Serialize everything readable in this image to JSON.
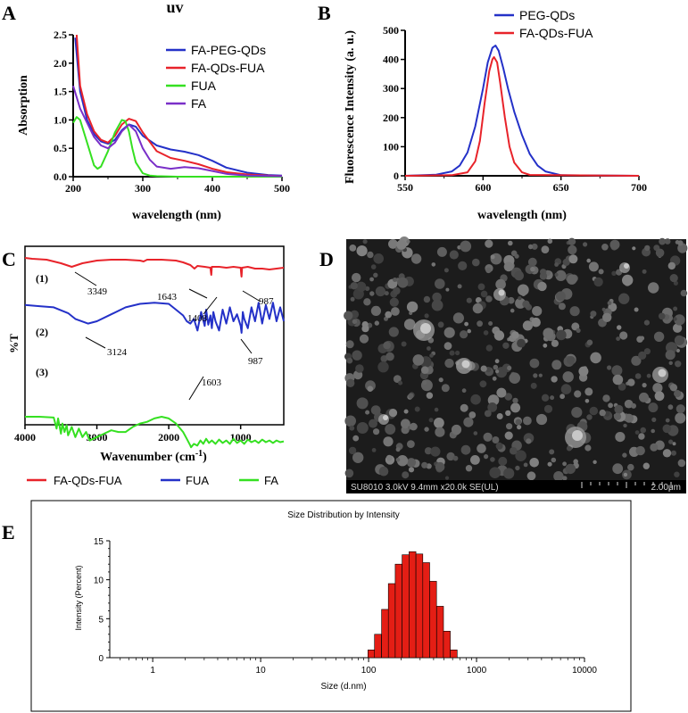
{
  "panels": {
    "a": {
      "letter": "A",
      "title": "uv",
      "xlabel": "wavelength (nm)",
      "ylabel": "Absorption"
    },
    "b": {
      "letter": "B",
      "xlabel": "wavelength (nm)",
      "ylabel": "Fluorescence Intensity (a. u.)"
    },
    "c": {
      "letter": "C",
      "ylabel": "%T",
      "xlabel_main": "Wavenumber (cm",
      "xlabel_sup": "-1",
      "xlabel_end": ")",
      "curve_labels": [
        "(1)",
        "(2)",
        "(3)"
      ],
      "annotations": [
        "3349",
        "1643",
        "1408",
        "987",
        "3124",
        "987",
        "1603"
      ]
    },
    "d": {
      "letter": "D",
      "info": "SU8010 3.0kV 9.4mm x20.0k SE(UL)",
      "scale": "2.00μm"
    },
    "e": {
      "letter": "E"
    }
  },
  "colors": {
    "red": "#e8232a",
    "blue": "#2431c8",
    "green": "#35e021",
    "purple": "#7a2fc8",
    "bar": "#e41e15"
  },
  "chart_data": [
    {
      "type": "line",
      "title": "uv",
      "xlabel": "wavelength (nm)",
      "ylabel": "Absorption",
      "xlim": [
        200,
        500
      ],
      "ylim": [
        0,
        2.5
      ],
      "xticks": [
        "200",
        "300",
        "400",
        "500"
      ],
      "yticks": [
        "0.0",
        "0.5",
        "1.0",
        "1.5",
        "2.0",
        "2.5"
      ],
      "legend": [
        "FA-PEG-QDs",
        "FA-QDs-FUA",
        "FUA",
        "FA"
      ],
      "series": [
        {
          "name": "FA-PEG-QDs",
          "color": "#2431c8",
          "x": [
            203,
            210,
            220,
            230,
            240,
            250,
            260,
            270,
            280,
            290,
            300,
            320,
            340,
            360,
            380,
            400,
            420,
            450,
            480,
            500
          ],
          "y": [
            2.45,
            1.5,
            1.0,
            0.75,
            0.62,
            0.58,
            0.65,
            0.82,
            0.92,
            0.88,
            0.72,
            0.55,
            0.48,
            0.44,
            0.38,
            0.28,
            0.16,
            0.07,
            0.03,
            0.02
          ]
        },
        {
          "name": "FA-QDs-FUA",
          "color": "#e8232a",
          "x": [
            205,
            210,
            220,
            230,
            240,
            250,
            260,
            270,
            280,
            290,
            300,
            320,
            340,
            360,
            380,
            400,
            420,
            450,
            480,
            500
          ],
          "y": [
            2.5,
            1.6,
            1.1,
            0.8,
            0.65,
            0.6,
            0.72,
            0.92,
            1.02,
            0.98,
            0.78,
            0.45,
            0.33,
            0.28,
            0.22,
            0.14,
            0.08,
            0.04,
            0.02,
            0.01
          ]
        },
        {
          "name": "FUA",
          "color": "#35e021",
          "x": [
            200,
            205,
            210,
            220,
            230,
            235,
            240,
            250,
            260,
            270,
            275,
            280,
            285,
            290,
            300,
            310,
            320,
            350,
            400,
            500
          ],
          "y": [
            0.95,
            1.05,
            1.0,
            0.6,
            0.2,
            0.14,
            0.18,
            0.45,
            0.78,
            1.0,
            0.98,
            0.8,
            0.5,
            0.25,
            0.06,
            0.02,
            0.01,
            0.0,
            0.0,
            0.0
          ]
        },
        {
          "name": "FA",
          "color": "#7a2fc8",
          "x": [
            200,
            210,
            220,
            230,
            240,
            250,
            260,
            270,
            280,
            290,
            300,
            310,
            320,
            340,
            360,
            380,
            400,
            420,
            450,
            500
          ],
          "y": [
            1.6,
            1.2,
            0.95,
            0.7,
            0.55,
            0.5,
            0.6,
            0.8,
            0.92,
            0.8,
            0.5,
            0.3,
            0.18,
            0.14,
            0.17,
            0.15,
            0.1,
            0.05,
            0.02,
            0.01
          ]
        }
      ]
    },
    {
      "type": "line",
      "xlabel": "wavelength (nm)",
      "ylabel": "Fluorescence Intensity (a. u.)",
      "xlim": [
        550,
        700
      ],
      "ylim": [
        0,
        500
      ],
      "xticks": [
        "550",
        "600",
        "650",
        "700"
      ],
      "yticks": [
        "0",
        "100",
        "200",
        "300",
        "400",
        "500"
      ],
      "legend": [
        "PEG-QDs",
        "FA-QDs-FUA"
      ],
      "series": [
        {
          "name": "PEG-QDs",
          "color": "#2431c8",
          "x": [
            550,
            570,
            580,
            585,
            590,
            595,
            600,
            603,
            606,
            608,
            610,
            613,
            616,
            620,
            625,
            630,
            635,
            640,
            650,
            700
          ],
          "y": [
            0,
            4,
            15,
            35,
            80,
            170,
            300,
            390,
            440,
            448,
            430,
            370,
            300,
            220,
            140,
            75,
            35,
            15,
            2,
            0
          ]
        },
        {
          "name": "FA-QDs-FUA",
          "color": "#e8232a",
          "x": [
            550,
            580,
            590,
            595,
            598,
            601,
            604,
            606,
            607,
            609,
            611,
            614,
            617,
            620,
            625,
            630,
            700
          ],
          "y": [
            0,
            2,
            12,
            50,
            120,
            250,
            360,
            400,
            408,
            390,
            320,
            200,
            100,
            45,
            12,
            3,
            0
          ]
        }
      ]
    },
    {
      "type": "line",
      "xlabel": "Wavenumber (cm-1)",
      "ylabel": "%T",
      "xlim": [
        4000,
        400
      ],
      "ylim": [
        0,
        100
      ],
      "xticks": [
        "4000",
        "3000",
        "2000",
        "1000"
      ],
      "legend": [
        "FA-QDs-FUA",
        "FUA",
        "FA"
      ],
      "series": [
        {
          "name": "FA-QDs-FUA",
          "color": "#e8232a",
          "x": [
            4000,
            3900,
            3700,
            3500,
            3349,
            3200,
            3000,
            2800,
            2600,
            2400,
            2350,
            2300,
            2100,
            1900,
            1800,
            1700,
            1643,
            1600,
            1500,
            1420,
            1410,
            1408,
            1400,
            1300,
            1200,
            1100,
            1000,
            990,
            987,
            980,
            900,
            800,
            700,
            600,
            500,
            400
          ],
          "y": [
            96,
            95,
            94,
            90,
            86,
            90,
            93,
            94,
            94,
            93,
            92,
            94,
            94,
            93,
            91,
            88,
            84,
            87,
            86,
            85,
            78,
            77,
            86,
            86,
            85,
            86,
            85,
            76,
            75,
            85,
            86,
            84,
            84,
            83,
            84,
            85
          ]
        },
        {
          "name": "FUA",
          "color": "#2431c8",
          "x": [
            4000,
            3800,
            3600,
            3400,
            3300,
            3124,
            3000,
            2800,
            2600,
            2400,
            2200,
            2000,
            1900,
            1800,
            1750,
            1700,
            1650,
            1600,
            1550,
            1500,
            1480,
            1450,
            1420,
            1400,
            1380,
            1350,
            1300,
            1250,
            1200,
            1150,
            1100,
            1050,
            1000,
            987,
            970,
            950,
            900,
            850,
            800,
            750,
            700,
            650,
            600,
            550,
            500,
            450,
            400
          ],
          "y": [
            64,
            63,
            62,
            57,
            52,
            48,
            50,
            56,
            62,
            65,
            66,
            65,
            60,
            55,
            50,
            48,
            52,
            42,
            58,
            46,
            60,
            47,
            55,
            44,
            58,
            50,
            42,
            60,
            48,
            62,
            50,
            56,
            46,
            40,
            58,
            52,
            44,
            62,
            50,
            66,
            48,
            64,
            52,
            66,
            50,
            62,
            50
          ]
        },
        {
          "name": "FA",
          "color": "#35e021",
          "x": [
            4000,
            3800,
            3600,
            3560,
            3540,
            3500,
            3480,
            3450,
            3420,
            3400,
            3350,
            3300,
            3250,
            3200,
            3150,
            3100,
            3050,
            3000,
            2900,
            2800,
            2700,
            2600,
            2500,
            2400,
            2300,
            2200,
            2100,
            2000,
            1900,
            1800,
            1750,
            1700,
            1690,
            1650,
            1603,
            1560,
            1520,
            1480,
            1440,
            1400,
            1350,
            1300,
            1250,
            1200,
            1150,
            1100,
            1050,
            1000,
            950,
            900,
            850,
            800,
            750,
            700,
            650,
            600,
            550,
            500,
            450,
            400
          ],
          "y": [
            40,
            40,
            39,
            26,
            38,
            20,
            32,
            22,
            30,
            18,
            28,
            16,
            26,
            16,
            22,
            12,
            14,
            16,
            20,
            24,
            22,
            22,
            28,
            32,
            34,
            38,
            40,
            38,
            32,
            22,
            14,
            6,
            4,
            8,
            6,
            12,
            8,
            14,
            9,
            12,
            8,
            13,
            9,
            12,
            8,
            14,
            9,
            12,
            8,
            13,
            10,
            12,
            9,
            13,
            10,
            12,
            9,
            12,
            10,
            11
          ]
        }
      ]
    },
    {
      "type": "bar",
      "title": "Size Distribution by Intensity",
      "xlabel": "Size (d.nm)",
      "ylabel": "Intensity (Percent)",
      "xscale": "log",
      "xlim": [
        0.4,
        10000
      ],
      "ylim": [
        0,
        15
      ],
      "xticks": [
        "1",
        "10",
        "100",
        "1000",
        "10000"
      ],
      "yticks": [
        "0",
        "5",
        "10",
        "15"
      ],
      "categories": [
        "106",
        "122",
        "142",
        "164",
        "190",
        "220",
        "255",
        "295",
        "342",
        "396",
        "459",
        "531",
        "615"
      ],
      "values": [
        1.0,
        3.0,
        6.2,
        9.5,
        12.0,
        13.2,
        13.6,
        13.3,
        12.2,
        9.8,
        6.6,
        3.4,
        1.0
      ]
    }
  ]
}
